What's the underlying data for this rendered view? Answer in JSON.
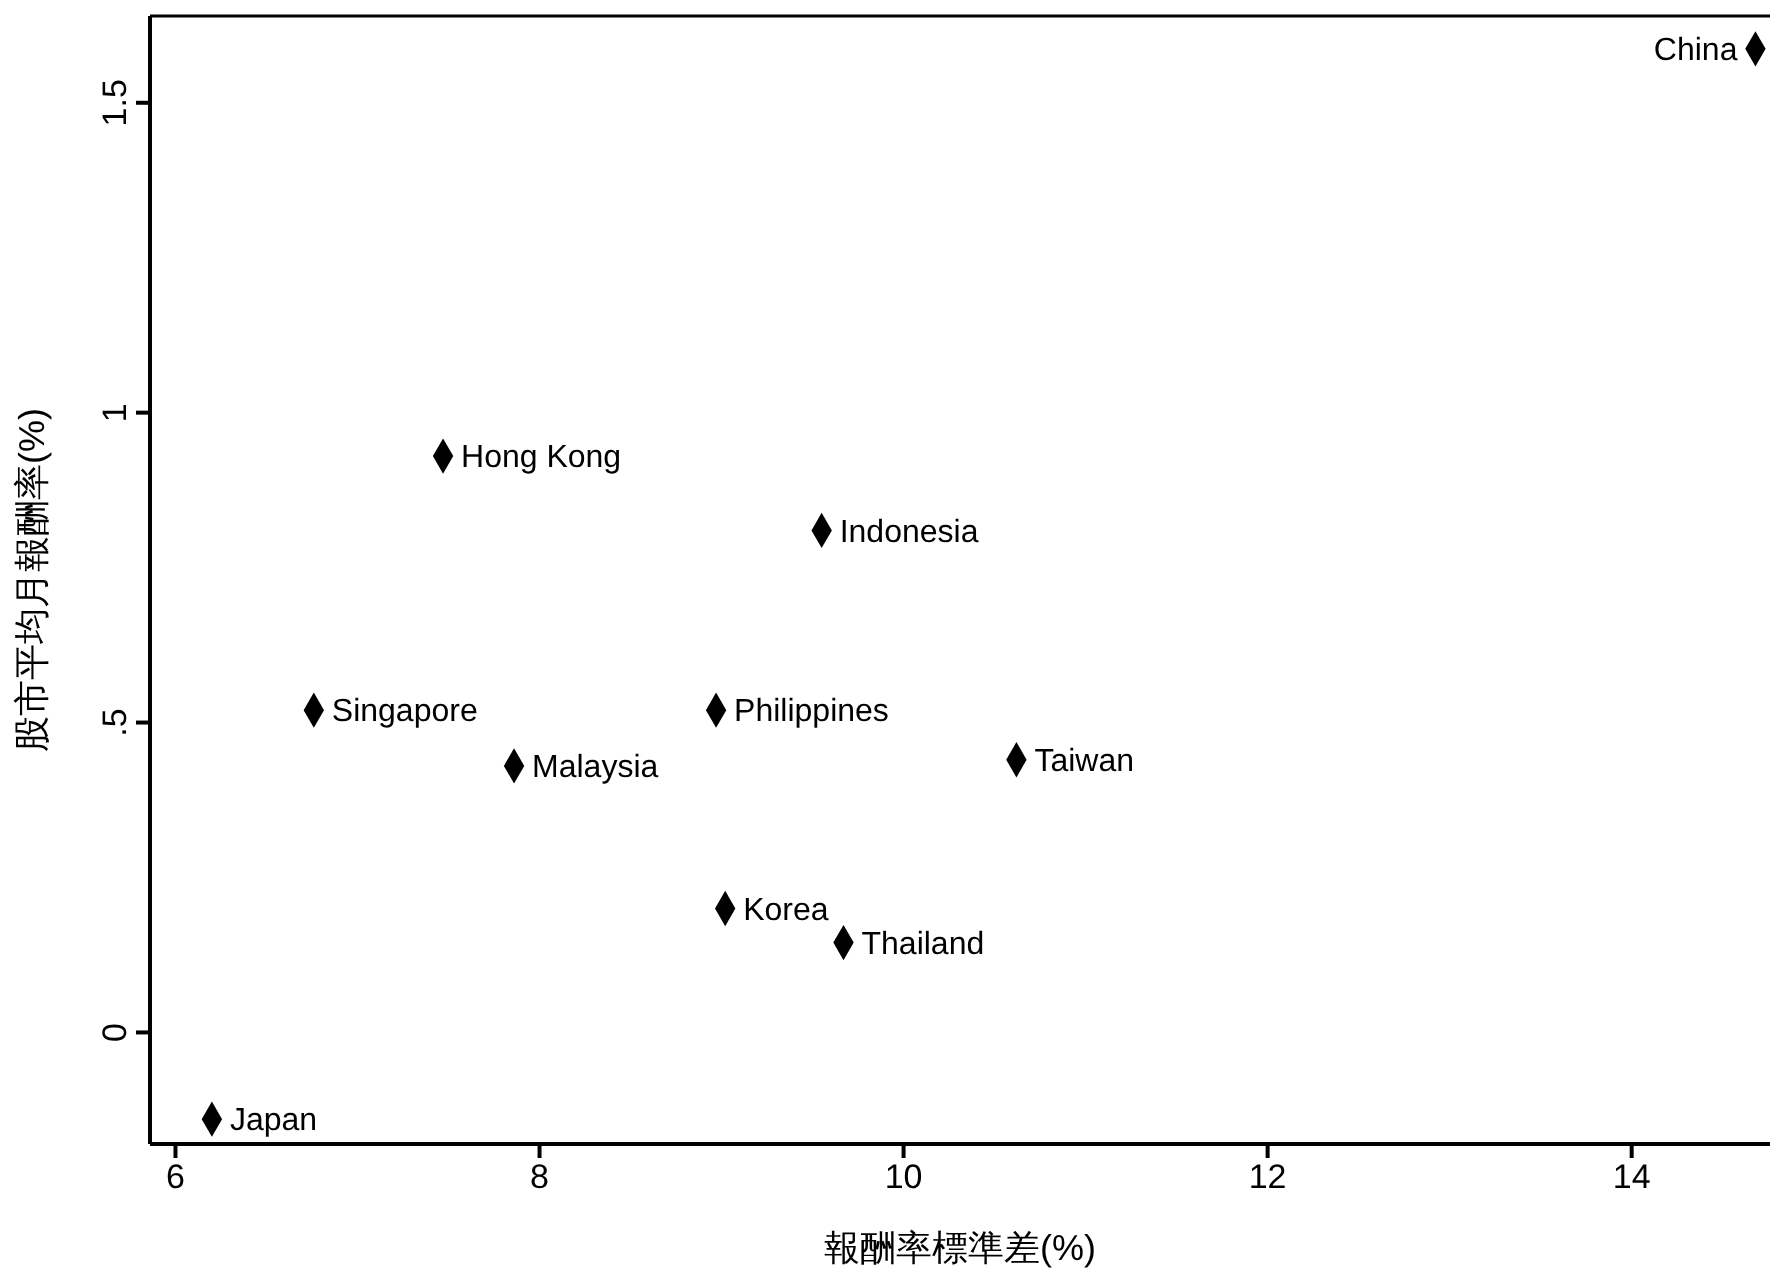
{
  "chart_data": {
    "type": "scatter",
    "xlabel": "報酬率標準差(%)",
    "ylabel": "股市平均月報酬率(%)",
    "marker": "diamond",
    "grid": false,
    "x": [
      14.68,
      7.47,
      9.55,
      6.76,
      8.97,
      7.86,
      10.62,
      9.02,
      9.67,
      6.2
    ],
    "values": [
      1.587,
      0.93,
      0.81,
      0.52,
      0.52,
      0.43,
      0.44,
      0.2,
      0.145,
      -0.14
    ],
    "color": "#000000",
    "xlim": [
      5.86,
      14.76
    ],
    "ylim": [
      -0.18,
      1.64
    ],
    "xticks": [
      6,
      8,
      10,
      12,
      14
    ],
    "yticks": [
      0,
      {
        "value": 0.5,
        "label": ".5"
      },
      1,
      1.5
    ],
    "annotations": [
      {
        "text": "China",
        "x": 14.68,
        "y": 1.587
      },
      {
        "text": "Hong Kong",
        "x": 7.47,
        "y": 0.93
      },
      {
        "text": "Indonesia",
        "x": 9.55,
        "y": 0.81
      },
      {
        "text": "Singapore",
        "x": 6.76,
        "y": 0.52
      },
      {
        "text": "Philippines",
        "x": 8.97,
        "y": 0.52
      },
      {
        "text": "Malaysia",
        "x": 7.86,
        "y": 0.43
      },
      {
        "text": "Taiwan",
        "x": 10.62,
        "y": 0.44
      },
      {
        "text": "Korea",
        "x": 9.02,
        "y": 0.2
      },
      {
        "text": "Thailand",
        "x": 9.67,
        "y": 0.145
      },
      {
        "text": "Japan",
        "x": 6.2,
        "y": -0.14
      }
    ]
  }
}
